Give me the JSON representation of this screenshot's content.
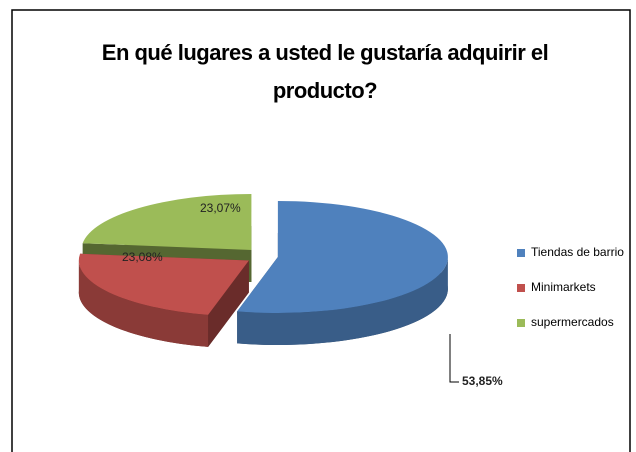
{
  "chart_data": {
    "type": "pie",
    "title": "En qué lugares a usted le gustaría adquirir el producto?",
    "categories": [
      "Tiendas de barrio",
      "Minimarkets",
      "supermercados"
    ],
    "values": [
      53.85,
      23.08,
      23.07
    ],
    "value_labels": [
      "53,85%",
      "23,08%",
      "23,07%"
    ],
    "colors": [
      "#4f81bd",
      "#c0504d",
      "#9bbb59"
    ],
    "legend": "right"
  }
}
